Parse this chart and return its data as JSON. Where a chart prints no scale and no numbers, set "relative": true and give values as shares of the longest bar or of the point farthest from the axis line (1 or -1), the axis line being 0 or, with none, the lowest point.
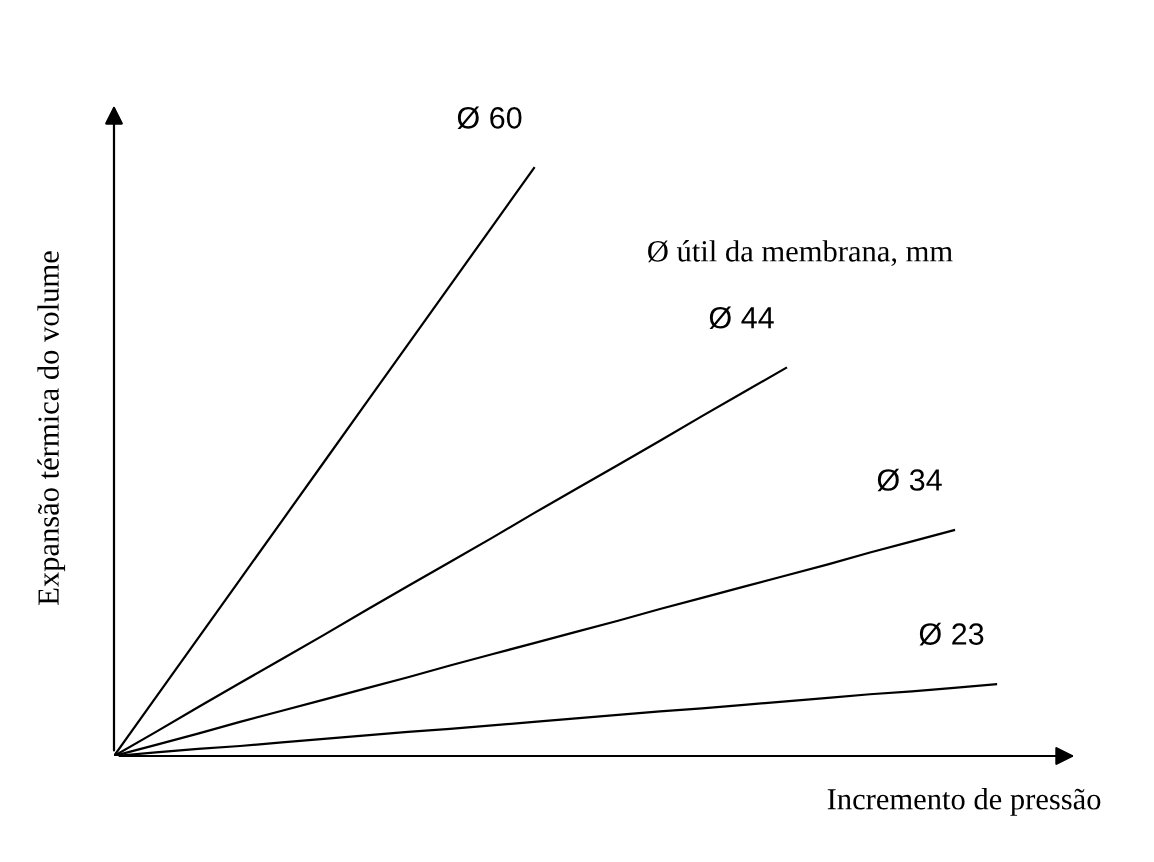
{
  "chart_data": {
    "type": "line",
    "relative": true,
    "xlabel": "Incremento de pressão",
    "ylabel": "Expansão térmica do volume",
    "annotations": [
      "Ø útil da membrana, mm"
    ],
    "legend": false,
    "marker": "none",
    "line_style": "solid",
    "categories": [
      null,
      null,
      null,
      null,
      null,
      null,
      null,
      null,
      null,
      null,
      null,
      null,
      null,
      null,
      null,
      null,
      null,
      null,
      null,
      null,
      null,
      null
    ],
    "series": [
      {
        "name": "Ø 60",
        "color": "#000000",
        "values": [
          0,
          0.1,
          0.2,
          0.3,
          0.4,
          0.5,
          0.6,
          0.7,
          0.8,
          0.9,
          1,
          null,
          null,
          null,
          null,
          null,
          null,
          null,
          null,
          null,
          null,
          null
        ]
      },
      {
        "name": "Ø 44",
        "color": "#000000",
        "values": [
          0,
          0.041,
          0.083,
          0.124,
          0.165,
          0.206,
          0.248,
          0.289,
          0.33,
          0.371,
          0.413,
          0.454,
          0.495,
          0.536,
          0.578,
          0.619,
          0.66,
          null,
          null,
          null,
          null,
          null
        ]
      },
      {
        "name": "Ø 34",
        "color": "#000000",
        "values": [
          0,
          0.019,
          0.038,
          0.058,
          0.077,
          0.096,
          0.115,
          0.134,
          0.154,
          0.173,
          0.192,
          0.211,
          0.23,
          0.25,
          0.269,
          0.288,
          0.307,
          0.326,
          0.346,
          0.365,
          0.384,
          null
        ]
      },
      {
        "name": "Ø 23",
        "color": "#000000",
        "values": [
          0,
          0.006,
          0.012,
          0.017,
          0.023,
          0.029,
          0.035,
          0.041,
          0.046,
          0.052,
          0.058,
          0.064,
          0.07,
          0.076,
          0.081,
          0.087,
          0.093,
          0.099,
          0.105,
          0.11,
          0.116,
          0.122
        ]
      }
    ]
  }
}
